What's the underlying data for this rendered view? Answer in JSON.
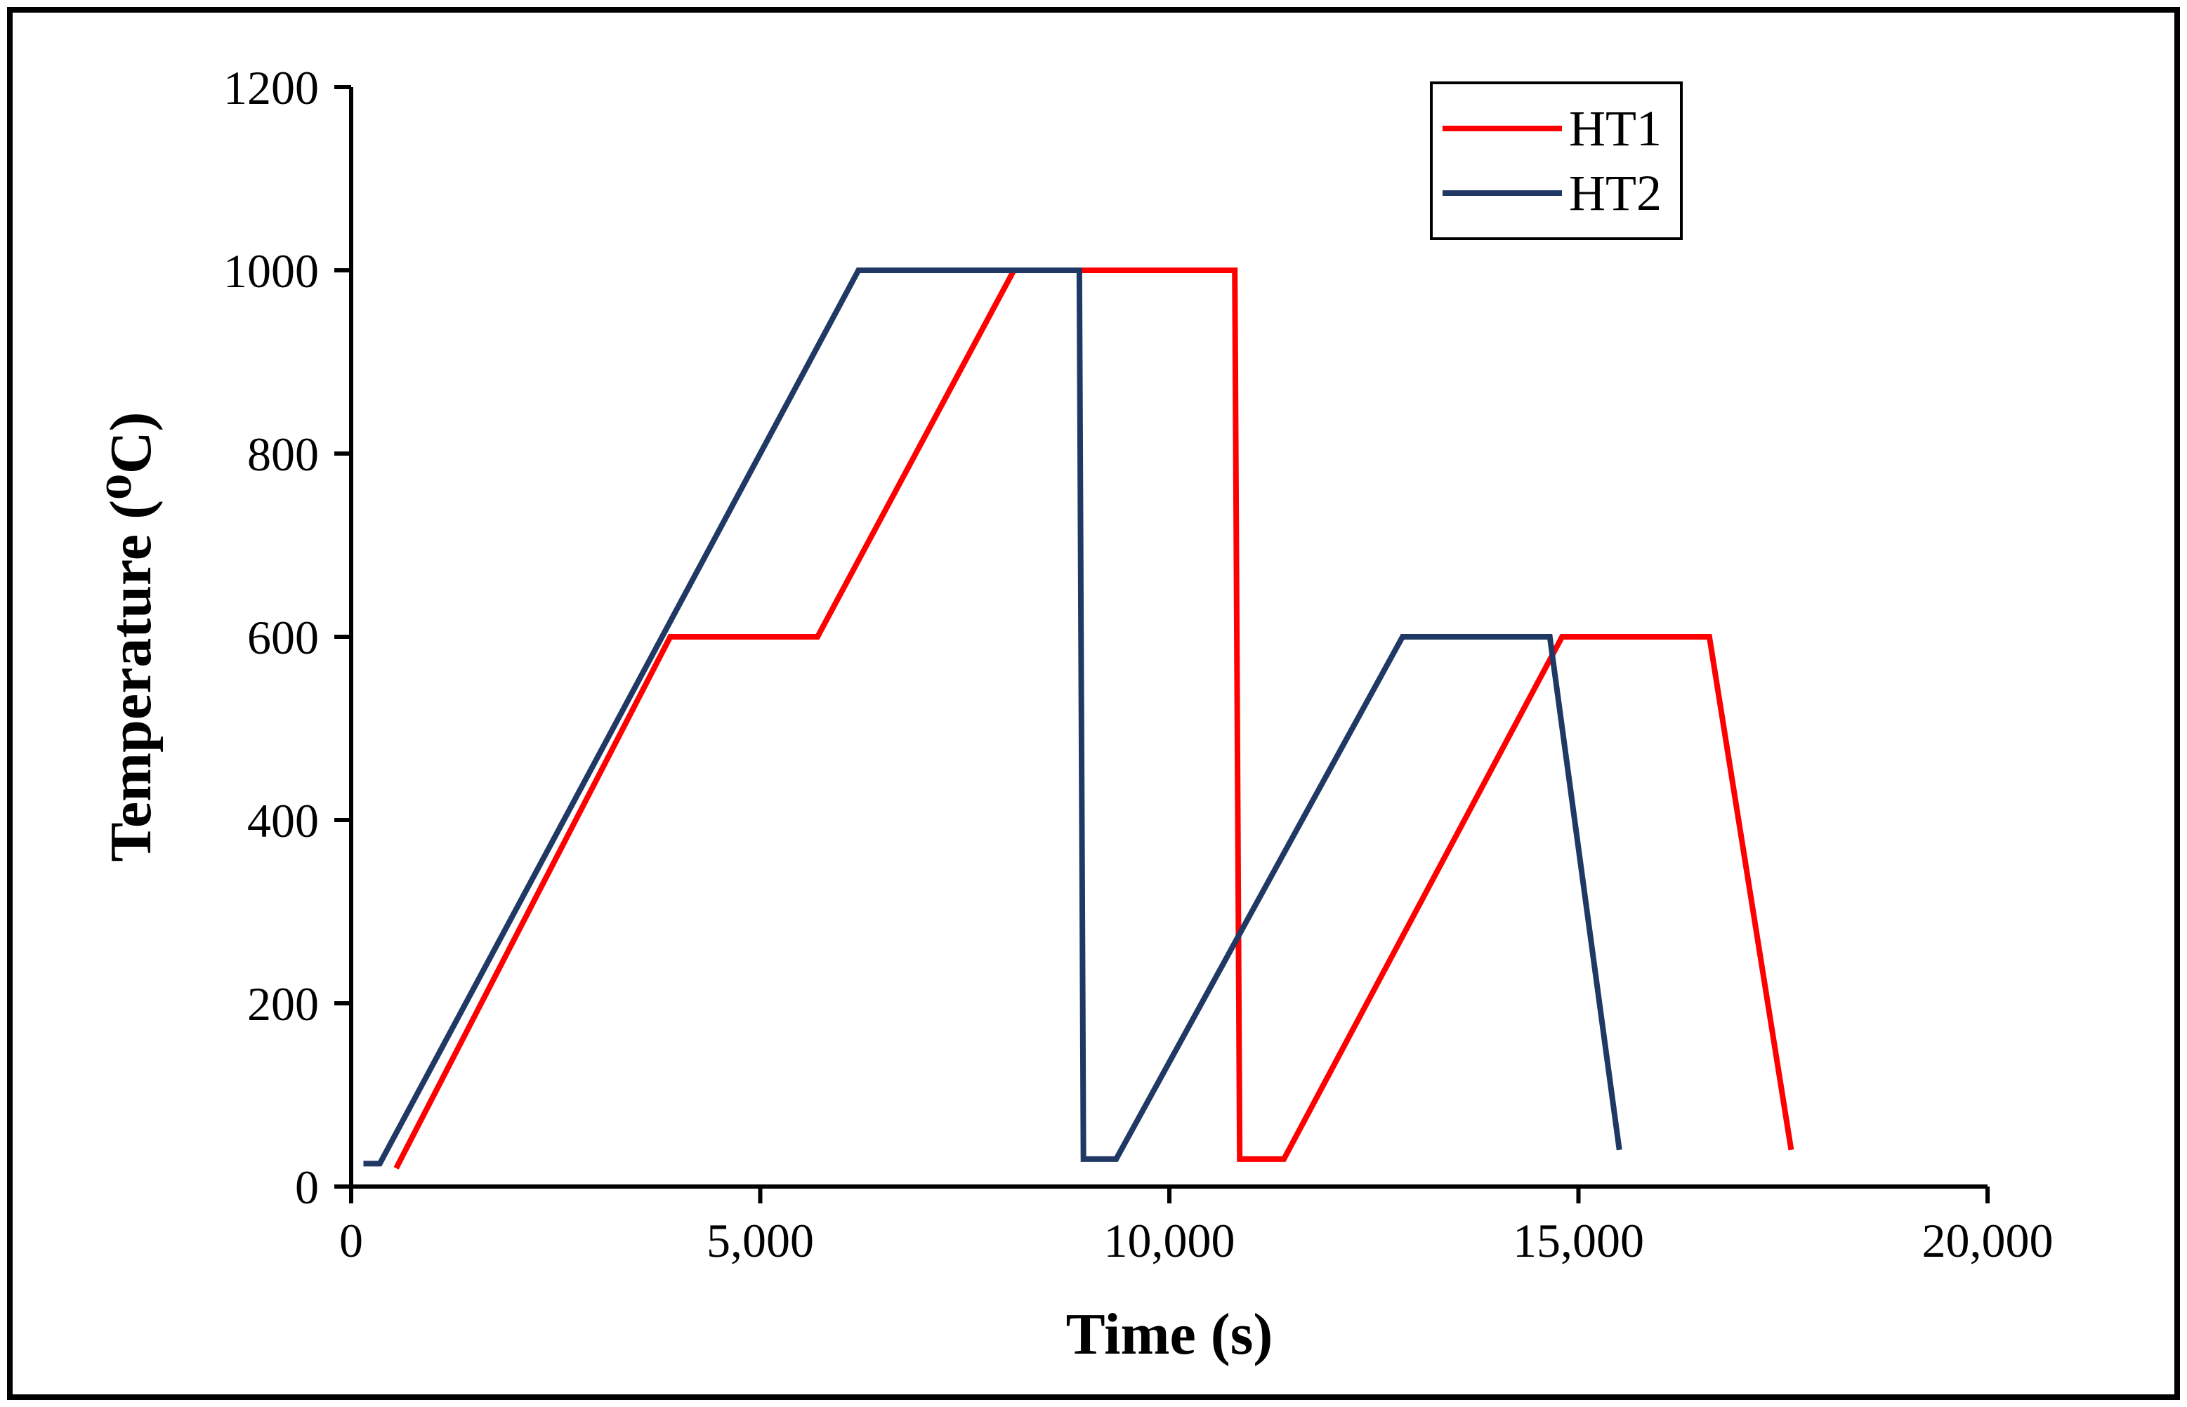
{
  "figure": {
    "background": "#FFFFFF",
    "frame_border_color": "#000000",
    "axis_color": "#000000"
  },
  "chart_data": {
    "type": "line",
    "title": "",
    "xlabel": "Time (s)",
    "ylabel": "Temperature (⁰C)",
    "xlim": [
      0,
      20000
    ],
    "ylim": [
      0,
      1200
    ],
    "x_ticks": [
      0,
      5000,
      10000,
      15000,
      20000
    ],
    "x_tick_labels": [
      "0",
      "5,000",
      "10,000",
      "15,000",
      "20,000"
    ],
    "y_ticks": [
      0,
      200,
      400,
      600,
      800,
      1000,
      1200
    ],
    "y_tick_labels": [
      "0",
      "200",
      "400",
      "600",
      "800",
      "1000",
      "1200"
    ],
    "grid": false,
    "legend_position": "top-right",
    "series": [
      {
        "name": "HT1",
        "color": "#FF0000",
        "points": [
          [
            550,
            20
          ],
          [
            3900,
            600
          ],
          [
            5700,
            600
          ],
          [
            8100,
            1000
          ],
          [
            10800,
            1000
          ],
          [
            10860,
            30
          ],
          [
            11400,
            30
          ],
          [
            14800,
            600
          ],
          [
            16600,
            600
          ],
          [
            17600,
            40
          ]
        ]
      },
      {
        "name": "HT2",
        "color": "#1F3864",
        "points": [
          [
            150,
            25
          ],
          [
            350,
            25
          ],
          [
            6200,
            1000
          ],
          [
            8900,
            1000
          ],
          [
            8950,
            30
          ],
          [
            9350,
            30
          ],
          [
            12850,
            600
          ],
          [
            14650,
            600
          ],
          [
            15500,
            40
          ]
        ]
      }
    ]
  }
}
